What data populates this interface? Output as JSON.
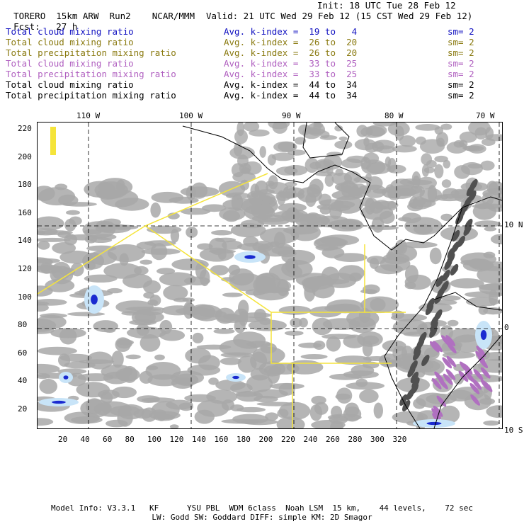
{
  "header": {
    "model": "TORERO",
    "resolution": "15km ARW",
    "run": "Run2",
    "org": "NCAR/MMM",
    "init": "Init: 18 UTC Tue 28 Feb 12",
    "fcst_label": "Fcst:",
    "fcst_hours": "27 h",
    "valid": "Valid: 21 UTC Wed 29 Feb 12 (15 CST Wed 29 Feb 12)"
  },
  "legend_rows": [
    {
      "field": "Total cloud mixing ratio",
      "kindex": "Avg. k-index =  19 to   4",
      "sm": "sm= 2",
      "color": "#1010c0"
    },
    {
      "field": "Total cloud mixing ratio",
      "kindex": "Avg. k-index =  26 to  20",
      "sm": "sm= 2",
      "color": "#8a7a10"
    },
    {
      "field": "Total precipitation mixing ratio",
      "kindex": "Avg. k-index =  26 to  20",
      "sm": "sm= 2",
      "color": "#8a7a10"
    },
    {
      "field": "Total cloud mixing ratio",
      "kindex": "Avg. k-index =  33 to  25",
      "sm": "sm= 2",
      "color": "#b060c0"
    },
    {
      "field": "Total precipitation mixing ratio",
      "kindex": "Avg. k-index =  33 to  25",
      "sm": "sm= 2",
      "color": "#b060c0"
    },
    {
      "field": "Total cloud mixing ratio",
      "kindex": "Avg. k-index =  44 to  34",
      "sm": "sm= 2",
      "color": "#000000"
    },
    {
      "field": "Total precipitation mixing ratio",
      "kindex": "Avg. k-index =  44 to  34",
      "sm": "sm= 2",
      "color": "#000000"
    }
  ],
  "map": {
    "lon_labels": [
      "110 W",
      "100 W",
      "90 W",
      "80 W",
      "70 W"
    ],
    "lat_labels": [
      "10 N",
      "0",
      "10 S"
    ],
    "x_ticks": [
      "20",
      "40",
      "60",
      "80",
      "100",
      "120",
      "140",
      "160",
      "180",
      "200",
      "220",
      "240",
      "260",
      "280",
      "300",
      "320"
    ],
    "y_ticks": [
      "220",
      "200",
      "180",
      "160",
      "140",
      "120",
      "100",
      "80",
      "60",
      "40",
      "20"
    ],
    "colors": {
      "cloud_gray": "#a8a8a8",
      "dark_gray": "#505050",
      "light_blue": "#c8e4f8",
      "blue": "#1a2ad0",
      "violet": "#b070c0",
      "yellow": "#f5e43a",
      "coast": "#000000"
    }
  },
  "footer": {
    "line1": "Model Info: V3.3.1   KF      YSU PBL  WDM 6class  Noah LSM  15 km,    44 levels,    72 sec",
    "line2": "LW: Godd SW: Goddard DIFF: simple KM: 2D Smagor"
  }
}
